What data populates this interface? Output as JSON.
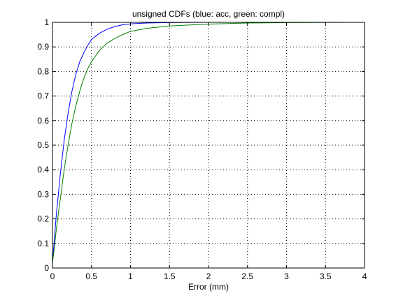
{
  "chart_data": {
    "type": "line",
    "title": "unsigned CDFs (blue: acc, green: compl)",
    "xlabel": "Error (mm)",
    "ylabel": "",
    "xlim": [
      0,
      4
    ],
    "ylim": [
      0,
      1
    ],
    "grid": true,
    "legend": "none",
    "x_ticks": [
      0,
      0.5,
      1,
      1.5,
      2,
      2.5,
      3,
      3.5,
      4
    ],
    "x_tick_labels": [
      "0",
      "0.5",
      "1",
      "1.5",
      "2",
      "2.5",
      "3",
      "3.5",
      "4"
    ],
    "y_ticks": [
      0,
      0.1,
      0.2,
      0.3,
      0.4,
      0.5,
      0.6,
      0.7,
      0.8,
      0.9,
      1
    ],
    "y_tick_labels": [
      "0",
      "0.1",
      "0.2",
      "0.3",
      "0.4",
      "0.5",
      "0.6",
      "0.7",
      "0.8",
      "0.9",
      "1"
    ],
    "series": [
      {
        "color": "#0000ff",
        "x": [
          0,
          0.02,
          0.05,
          0.1,
          0.15,
          0.2,
          0.25,
          0.3,
          0.35,
          0.4,
          0.45,
          0.5,
          0.6,
          0.7,
          0.8,
          0.9,
          1.0,
          1.2,
          1.5,
          2.0,
          2.42
        ],
        "y": [
          0.02,
          0.1,
          0.22,
          0.38,
          0.52,
          0.63,
          0.72,
          0.79,
          0.84,
          0.875,
          0.905,
          0.93,
          0.955,
          0.972,
          0.983,
          0.99,
          0.994,
          0.997,
          0.999,
          1.0,
          1.0
        ]
      },
      {
        "color": "#008000",
        "x": [
          0,
          0.02,
          0.05,
          0.1,
          0.15,
          0.2,
          0.25,
          0.3,
          0.35,
          0.4,
          0.45,
          0.5,
          0.6,
          0.7,
          0.8,
          0.9,
          1.0,
          1.2,
          1.5,
          2.0,
          2.5,
          3.0,
          4.0
        ],
        "y": [
          0.02,
          0.07,
          0.16,
          0.28,
          0.4,
          0.5,
          0.59,
          0.66,
          0.72,
          0.77,
          0.81,
          0.84,
          0.885,
          0.915,
          0.935,
          0.95,
          0.963,
          0.975,
          0.985,
          0.993,
          0.997,
          0.999,
          1.0
        ]
      }
    ]
  }
}
